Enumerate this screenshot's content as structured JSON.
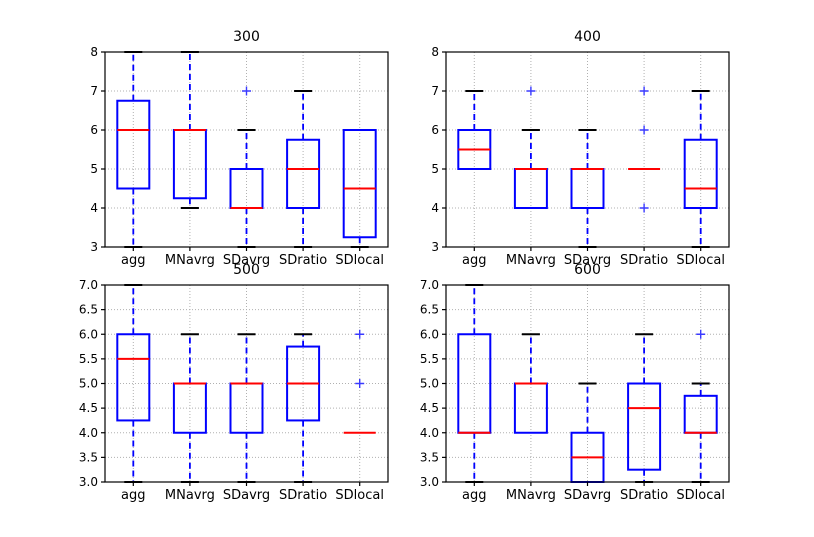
{
  "figure": {
    "background": "#ffffff"
  },
  "style": {
    "box_color": "#0000ff",
    "median_color": "#ff0000",
    "whisker_color": "#0000ff",
    "cap_color": "#000000",
    "flier_color": "#3a3aff",
    "grid_color": "#b0b0b0",
    "axis_color": "#000000",
    "tick_label_color": "#000000"
  },
  "chart_data": [
    {
      "type": "box",
      "title": "300",
      "categories": [
        "agg",
        "MNavrg",
        "SDavrg",
        "SDratio",
        "SDlocal"
      ],
      "ylim": [
        3,
        8
      ],
      "yticks": [
        3,
        4,
        5,
        6,
        7,
        8
      ],
      "ytick_labels": [
        "3",
        "4",
        "5",
        "6",
        "7",
        "8"
      ],
      "grid": true,
      "boxes": [
        {
          "label": "agg",
          "whislo": 3.0,
          "q1": 4.5,
          "med": 6.0,
          "q3": 6.75,
          "whishi": 8.0,
          "fliers": []
        },
        {
          "label": "MNavrg",
          "whislo": 4.0,
          "q1": 4.25,
          "med": 6.0,
          "q3": 6.0,
          "whishi": 8.0,
          "fliers": []
        },
        {
          "label": "SDavrg",
          "whislo": 3.0,
          "q1": 4.0,
          "med": 4.0,
          "q3": 5.0,
          "whishi": 6.0,
          "fliers": [
            7.0
          ]
        },
        {
          "label": "SDratio",
          "whislo": 3.0,
          "q1": 4.0,
          "med": 5.0,
          "q3": 5.75,
          "whishi": 7.0,
          "fliers": []
        },
        {
          "label": "SDlocal",
          "whislo": 3.0,
          "q1": 3.25,
          "med": 4.5,
          "q3": 6.0,
          "whishi": 6.0,
          "fliers": []
        }
      ]
    },
    {
      "type": "box",
      "title": "400",
      "categories": [
        "agg",
        "MNavrg",
        "SDavrg",
        "SDratio",
        "SDlocal"
      ],
      "ylim": [
        3,
        8
      ],
      "yticks": [
        3,
        4,
        5,
        6,
        7,
        8
      ],
      "ytick_labels": [
        "3",
        "4",
        "5",
        "6",
        "7",
        "8"
      ],
      "grid": true,
      "boxes": [
        {
          "label": "agg",
          "whislo": 5.0,
          "q1": 5.0,
          "med": 5.5,
          "q3": 6.0,
          "whishi": 7.0,
          "fliers": []
        },
        {
          "label": "MNavrg",
          "whislo": 4.0,
          "q1": 4.0,
          "med": 5.0,
          "q3": 5.0,
          "whishi": 6.0,
          "fliers": [
            7.0
          ]
        },
        {
          "label": "SDavrg",
          "whislo": 3.0,
          "q1": 4.0,
          "med": 5.0,
          "q3": 5.0,
          "whishi": 6.0,
          "fliers": []
        },
        {
          "label": "SDratio",
          "whislo": 5.0,
          "q1": 5.0,
          "med": 5.0,
          "q3": 5.0,
          "whishi": 5.0,
          "fliers": [
            7.0,
            6.0,
            4.0
          ]
        },
        {
          "label": "SDlocal",
          "whislo": 3.0,
          "q1": 4.0,
          "med": 4.5,
          "q3": 5.75,
          "whishi": 7.0,
          "fliers": []
        }
      ]
    },
    {
      "type": "box",
      "title": "500",
      "categories": [
        "agg",
        "MNavrg",
        "SDavrg",
        "SDratio",
        "SDlocal"
      ],
      "ylim": [
        3.0,
        7.0
      ],
      "yticks": [
        3.0,
        3.5,
        4.0,
        4.5,
        5.0,
        5.5,
        6.0,
        6.5,
        7.0
      ],
      "ytick_labels": [
        "3.0",
        "3.5",
        "4.0",
        "4.5",
        "5.0",
        "5.5",
        "6.0",
        "6.5",
        "7.0"
      ],
      "grid": true,
      "boxes": [
        {
          "label": "agg",
          "whislo": 3.0,
          "q1": 4.25,
          "med": 5.5,
          "q3": 6.0,
          "whishi": 7.0,
          "fliers": []
        },
        {
          "label": "MNavrg",
          "whislo": 3.0,
          "q1": 4.0,
          "med": 5.0,
          "q3": 5.0,
          "whishi": 6.0,
          "fliers": []
        },
        {
          "label": "SDavrg",
          "whislo": 3.0,
          "q1": 4.0,
          "med": 5.0,
          "q3": 5.0,
          "whishi": 6.0,
          "fliers": []
        },
        {
          "label": "SDratio",
          "whislo": 3.0,
          "q1": 4.25,
          "med": 5.0,
          "q3": 5.75,
          "whishi": 6.0,
          "fliers": []
        },
        {
          "label": "SDlocal",
          "whislo": 4.0,
          "q1": 4.0,
          "med": 4.0,
          "q3": 4.0,
          "whishi": 4.0,
          "fliers": [
            6.0,
            5.0
          ]
        }
      ]
    },
    {
      "type": "box",
      "title": "600",
      "categories": [
        "agg",
        "MNavrg",
        "SDavrg",
        "SDratio",
        "SDlocal"
      ],
      "ylim": [
        3.0,
        7.0
      ],
      "yticks": [
        3.0,
        3.5,
        4.0,
        4.5,
        5.0,
        5.5,
        6.0,
        6.5,
        7.0
      ],
      "ytick_labels": [
        "3.0",
        "3.5",
        "4.0",
        "4.5",
        "5.0",
        "5.5",
        "6.0",
        "6.5",
        "7.0"
      ],
      "grid": true,
      "boxes": [
        {
          "label": "agg",
          "whislo": 3.0,
          "q1": 4.0,
          "med": 4.0,
          "q3": 6.0,
          "whishi": 7.0,
          "fliers": []
        },
        {
          "label": "MNavrg",
          "whislo": 4.0,
          "q1": 4.0,
          "med": 5.0,
          "q3": 5.0,
          "whishi": 6.0,
          "fliers": []
        },
        {
          "label": "SDavrg",
          "whislo": 3.0,
          "q1": 3.0,
          "med": 3.5,
          "q3": 4.0,
          "whishi": 5.0,
          "fliers": []
        },
        {
          "label": "SDratio",
          "whislo": 3.0,
          "q1": 3.25,
          "med": 4.5,
          "q3": 5.0,
          "whishi": 6.0,
          "fliers": []
        },
        {
          "label": "SDlocal",
          "whislo": 3.0,
          "q1": 4.0,
          "med": 4.0,
          "q3": 4.75,
          "whishi": 5.0,
          "fliers": [
            6.0
          ]
        }
      ]
    }
  ]
}
